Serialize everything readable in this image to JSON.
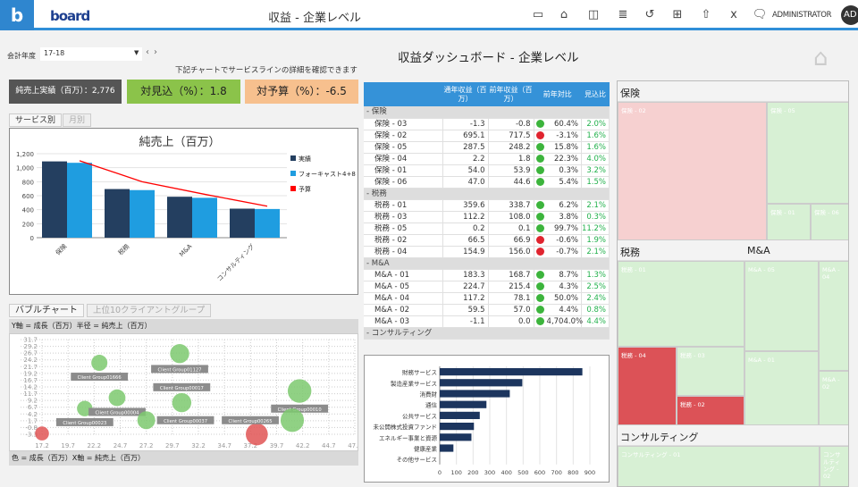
{
  "header": {
    "logo_letter": "b",
    "brand": "board",
    "title": "収益 - 企業レベル",
    "user": "ADMINISTRATOR",
    "avatar": "AD",
    "icons": [
      "window-icon",
      "home-icon",
      "panel-icon",
      "tree-icon",
      "undo-icon",
      "presentation-icon",
      "share-icon",
      "excel-icon",
      "comments-icon"
    ]
  },
  "filters": {
    "fy_label": "会計年度",
    "fy_value": "17-18",
    "prev": "‹",
    "next": "›"
  },
  "hint": "下記チャートでサービスラインの詳細を確認できます",
  "dashboard_title": "収益ダッシュボード - 企業レベル",
  "kpis": [
    {
      "label": "純売上実績（百万）：2,776"
    },
    {
      "label": "対見込（%）：1.8",
      "color": "#8bc34a"
    },
    {
      "label": "対予算（%）：-6.5",
      "color": "#f7c08e"
    }
  ],
  "tabs1": [
    "サービス別",
    "月別"
  ],
  "tabs2": [
    "バブルチャート",
    "上位10クライアントグループ"
  ],
  "chart_data": [
    {
      "type": "bar",
      "title": "純売上（百万）",
      "categories": [
        "保険",
        "税務",
        "M&A",
        "コンサルティング"
      ],
      "series": [
        {
          "name": "実績",
          "values": [
            1090,
            695,
            585,
            415
          ],
          "color": "#243f60"
        },
        {
          "name": "フォーキャスト4+8",
          "values": [
            1070,
            680,
            570,
            410
          ],
          "color": "#1f9de0"
        },
        {
          "name": "予算",
          "values": [
            1100,
            800,
            620,
            450
          ],
          "color": "#ff0000",
          "kind": "line"
        }
      ],
      "yticks": [
        "0",
        "200",
        "400",
        "600",
        "800",
        "1,000",
        "1,200"
      ],
      "ylim": [
        0,
        1200
      ],
      "legend": "right"
    },
    {
      "type": "scatter",
      "caption_y": "Y軸 = 成長（百万）半径 = 純売上（百万）",
      "caption_x": "色 = 成長（百万）X軸 = 純売上（百万）",
      "xticks": [
        "17.2",
        "19.7",
        "22.2",
        "24.7",
        "27.2",
        "29.7",
        "32.2",
        "34.7",
        "37.2",
        "39.7",
        "42.2",
        "44.7",
        "47.2"
      ],
      "yticks": [
        "31.7",
        "29.2",
        "26.7",
        "24.2",
        "21.7",
        "19.2",
        "16.7",
        "14.2",
        "11.7",
        "9.2",
        "6.7",
        "4.2",
        "1.7",
        "-0.8",
        "-3.3"
      ],
      "xlim": [
        17.2,
        47.2
      ],
      "ylim": [
        -3.3,
        31.7
      ],
      "points": [
        {
          "label": "",
          "x": 17.2,
          "y": -3.0,
          "color": "#e05555"
        },
        {
          "label": "Client Group00023",
          "x": 21.3,
          "y": 6.2
        },
        {
          "label": "Client Group01666",
          "x": 22.7,
          "y": 23.1
        },
        {
          "label": "Client Group00004",
          "x": 24.4,
          "y": 10.2
        },
        {
          "label": "Client Group00037",
          "x": 27.2,
          "y": 1.9
        },
        {
          "label": "Client Group01127",
          "x": 30.4,
          "y": 26.5
        },
        {
          "label": "Client Group00017",
          "x": 30.6,
          "y": 8.4
        },
        {
          "label": "",
          "x": 37.8,
          "y": -3.3,
          "color": "#e05555"
        },
        {
          "label": "Client Group00010",
          "x": 41.9,
          "y": 12.7
        },
        {
          "label": "Client Group00265",
          "x": 41.2,
          "y": 1.9
        }
      ]
    },
    {
      "type": "bar",
      "orientation": "horizontal",
      "categories": [
        "財務サービス",
        "製造産業サービス",
        "消費財",
        "通信",
        "公共サービス",
        "未公開株式投資ファンド",
        "エネルギー事業と資源",
        "健康産業",
        "その他サービス"
      ],
      "values": [
        855,
        495,
        420,
        280,
        240,
        205,
        190,
        82,
        0
      ],
      "xticks": [
        "0",
        "100",
        "200",
        "300",
        "400",
        "500",
        "600",
        "700",
        "800",
        "900"
      ],
      "xlim": [
        0,
        900
      ],
      "color": "#1c355e"
    }
  ],
  "table": {
    "headers": [
      "",
      "通年収益（百万）",
      "前年収益（百万）",
      "前年対比",
      "見込比"
    ],
    "groups": [
      {
        "name": "保険",
        "rows": [
          [
            "保険 - 03",
            "-1.3",
            "-0.8",
            "green",
            "60.4%",
            "2.0%"
          ],
          [
            "保険 - 02",
            "695.1",
            "717.5",
            "red",
            "-3.1%",
            "1.6%"
          ],
          [
            "保険 - 05",
            "287.5",
            "248.2",
            "green",
            "15.8%",
            "1.6%"
          ],
          [
            "保険 - 04",
            "2.2",
            "1.8",
            "green",
            "22.3%",
            "4.0%"
          ],
          [
            "保険 - 01",
            "54.0",
            "53.9",
            "green",
            "0.3%",
            "3.2%"
          ],
          [
            "保険 - 06",
            "47.0",
            "44.6",
            "green",
            "5.4%",
            "1.5%"
          ]
        ]
      },
      {
        "name": "税務",
        "rows": [
          [
            "税務 - 01",
            "359.6",
            "338.7",
            "green",
            "6.2%",
            "2.1%"
          ],
          [
            "税務 - 03",
            "112.2",
            "108.0",
            "green",
            "3.8%",
            "0.3%"
          ],
          [
            "税務 - 05",
            "0.2",
            "0.1",
            "green",
            "99.7%",
            "11.2%"
          ],
          [
            "税務 - 02",
            "66.5",
            "66.9",
            "red",
            "-0.6%",
            "1.9%"
          ],
          [
            "税務 - 04",
            "154.9",
            "156.0",
            "red",
            "-0.7%",
            "2.1%"
          ]
        ]
      },
      {
        "name": "M&A",
        "rows": [
          [
            "M&A - 01",
            "183.3",
            "168.7",
            "green",
            "8.7%",
            "1.3%"
          ],
          [
            "M&A - 05",
            "224.7",
            "215.4",
            "green",
            "4.3%",
            "2.5%"
          ],
          [
            "M&A - 04",
            "117.2",
            "78.1",
            "green",
            "50.0%",
            "2.4%"
          ],
          [
            "M&A - 02",
            "59.5",
            "57.0",
            "green",
            "4.4%",
            "0.8%"
          ],
          [
            "M&A - 03",
            "-1.1",
            "0.0",
            "green",
            "4,704.0%",
            "4.4%"
          ]
        ]
      },
      {
        "name": "コンサルティング",
        "rows": []
      }
    ]
  },
  "treemap": {
    "headers": [
      "保険",
      "税務",
      "M&A",
      "コンサルティング"
    ],
    "tiles": [
      "保険 - 02",
      "保険 - 05",
      "保険 - 01",
      "保険 - 06",
      "税務 - 01",
      "税務 - 04",
      "税務 - 03",
      "税務 - 02",
      "M&A - 05",
      "M&A - 01",
      "M&A - 04",
      "M&A - 02",
      "コンサルティング - 01",
      "コンサルティング - 02"
    ],
    "colors": {
      "good": "#d7f0d4",
      "bad_light": "#f6d0d0",
      "bad": "#dc5257"
    }
  }
}
